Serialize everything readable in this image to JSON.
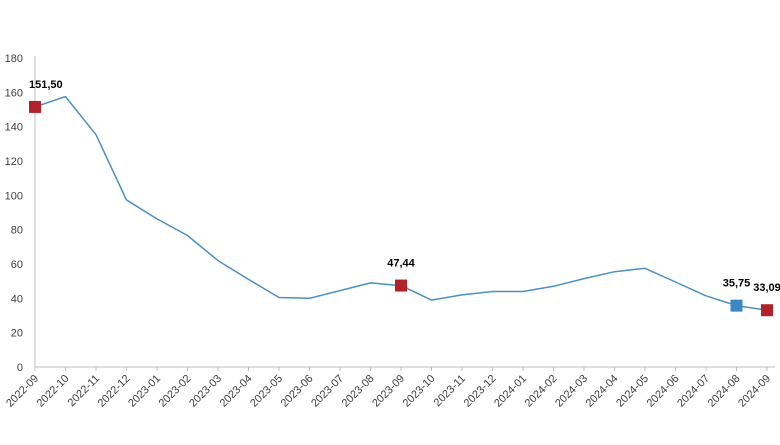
{
  "chart_data": {
    "type": "line",
    "title": "",
    "xlabel": "",
    "ylabel": "",
    "ylim": [
      0,
      180
    ],
    "yticks": [
      0,
      20,
      40,
      60,
      80,
      100,
      120,
      140,
      160,
      180
    ],
    "grid": false,
    "categories": [
      "2022-09",
      "2022-10",
      "2022-11",
      "2022-12",
      "2023-01",
      "2023-02",
      "2023-03",
      "2023-04",
      "2023-05",
      "2023-06",
      "2023-07",
      "2023-08",
      "2023-09",
      "2023-10",
      "2023-11",
      "2023-12",
      "2024-01",
      "2024-02",
      "2024-03",
      "2024-04",
      "2024-05",
      "2024-06",
      "2024-07",
      "2024-08",
      "2024-09"
    ],
    "series": [
      {
        "values": [
          151.5,
          157.5,
          135.3,
          97.3,
          86.3,
          76.6,
          62.0,
          51.0,
          40.5,
          40.0,
          44.5,
          49.0,
          47.44,
          39.0,
          42.0,
          44.0,
          44.0,
          47.0,
          51.5,
          55.5,
          57.5,
          49.5,
          41.5,
          35.75,
          33.09
        ]
      }
    ],
    "highlights": [
      {
        "index": 0,
        "label": "151,50",
        "color": "#b0232a"
      },
      {
        "index": 12,
        "label": "47,44",
        "color": "#b0232a"
      },
      {
        "index": 23,
        "label": "35,75",
        "color": "#3c88c3"
      },
      {
        "index": 24,
        "label": "33,09",
        "color": "#b0232a"
      }
    ],
    "colors": {
      "line": "#4a90c0",
      "axis": "#bfbfbf",
      "text": "#404040",
      "label": "#000000"
    }
  }
}
